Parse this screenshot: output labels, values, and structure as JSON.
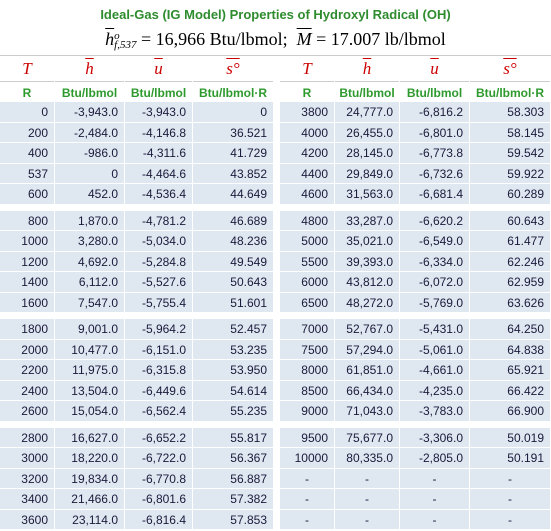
{
  "header": {
    "title": "Ideal-Gas (IG Model) Properties of Hydroxyl Radical (OH)",
    "formula": {
      "h_symbol": "h",
      "h_sup": "o",
      "h_sub": "f,537",
      "h_value": "= 16,966 Btu/lbmol;",
      "m_symbol": "M",
      "m_value": "= 17.007 lb/lbmol"
    }
  },
  "table": {
    "symbols": [
      "T",
      "h",
      "u",
      "s°",
      "T",
      "h",
      "u",
      "s°"
    ],
    "units": [
      "R",
      "Btu/lbmol",
      "Btu/lbmol",
      "Btu/lbmol·R",
      "R",
      "Btu/lbmol",
      "Btu/lbmol",
      "Btu/lbmol·R"
    ],
    "groups": [
      {
        "rows": [
          [
            "0",
            "-3,943.0",
            "-3,943.0",
            "0",
            "3800",
            "24,777.0",
            "-6,816.2",
            "58.303"
          ],
          [
            "200",
            "-2,484.0",
            "-4,146.8",
            "36.521",
            "4000",
            "26,455.0",
            "-6,801.0",
            "58.145"
          ],
          [
            "400",
            "-986.0",
            "-4,311.6",
            "41.729",
            "4200",
            "28,145.0",
            "-6,773.8",
            "59.542"
          ],
          [
            "537",
            "0",
            "-4,464.6",
            "43.852",
            "4400",
            "29,849.0",
            "-6,732.6",
            "59.922"
          ],
          [
            "600",
            "452.0",
            "-4,536.4",
            "44.649",
            "4600",
            "31,563.0",
            "-6,681.4",
            "60.289"
          ]
        ]
      },
      {
        "rows": [
          [
            "800",
            "1,870.0",
            "-4,781.2",
            "46.689",
            "4800",
            "33,287.0",
            "-6,620.2",
            "60.643"
          ],
          [
            "1000",
            "3,280.0",
            "-5,034.0",
            "48.236",
            "5000",
            "35,021.0",
            "-6,549.0",
            "61.477"
          ],
          [
            "1200",
            "4,692.0",
            "-5,284.8",
            "49.549",
            "5500",
            "39,393.0",
            "-6,334.0",
            "62.246"
          ],
          [
            "1400",
            "6,112.0",
            "-5,527.6",
            "50.643",
            "6000",
            "43,812.0",
            "-6,072.0",
            "62.959"
          ],
          [
            "1600",
            "7,547.0",
            "-5,755.4",
            "51.601",
            "6500",
            "48,272.0",
            "-5,769.0",
            "63.626"
          ]
        ]
      },
      {
        "rows": [
          [
            "1800",
            "9,001.0",
            "-5,964.2",
            "52.457",
            "7000",
            "52,767.0",
            "-5,431.0",
            "64.250"
          ],
          [
            "2000",
            "10,477.0",
            "-6,151.0",
            "53.235",
            "7500",
            "57,294.0",
            "-5,061.0",
            "64.838"
          ],
          [
            "2200",
            "11,975.0",
            "-6,315.8",
            "53.950",
            "8000",
            "61,851.0",
            "-4,661.0",
            "65.921"
          ],
          [
            "2400",
            "13,504.0",
            "-6,449.6",
            "54.614",
            "8500",
            "66,434.0",
            "-4,235.0",
            "66.422"
          ],
          [
            "2600",
            "15,054.0",
            "-6,562.4",
            "55.235",
            "9000",
            "71,043.0",
            "-3,783.0",
            "66.900"
          ]
        ]
      },
      {
        "rows": [
          [
            "2800",
            "16,627.0",
            "-6,652.2",
            "55.817",
            "9500",
            "75,677.0",
            "-3,306.0",
            "50.019"
          ],
          [
            "3000",
            "18,220.0",
            "-6,722.0",
            "56.367",
            "10000",
            "80,335.0",
            "-2,805.0",
            "50.191"
          ],
          [
            "3200",
            "19,834.0",
            "-6,770.8",
            "56.887",
            "-",
            "-",
            "-",
            "-"
          ],
          [
            "3400",
            "21,466.0",
            "-6,801.6",
            "57.382",
            "-",
            "-",
            "-",
            "-"
          ],
          [
            "3600",
            "23,114.0",
            "-6,816.4",
            "57.853",
            "-",
            "-",
            "-",
            "-"
          ]
        ]
      }
    ]
  }
}
